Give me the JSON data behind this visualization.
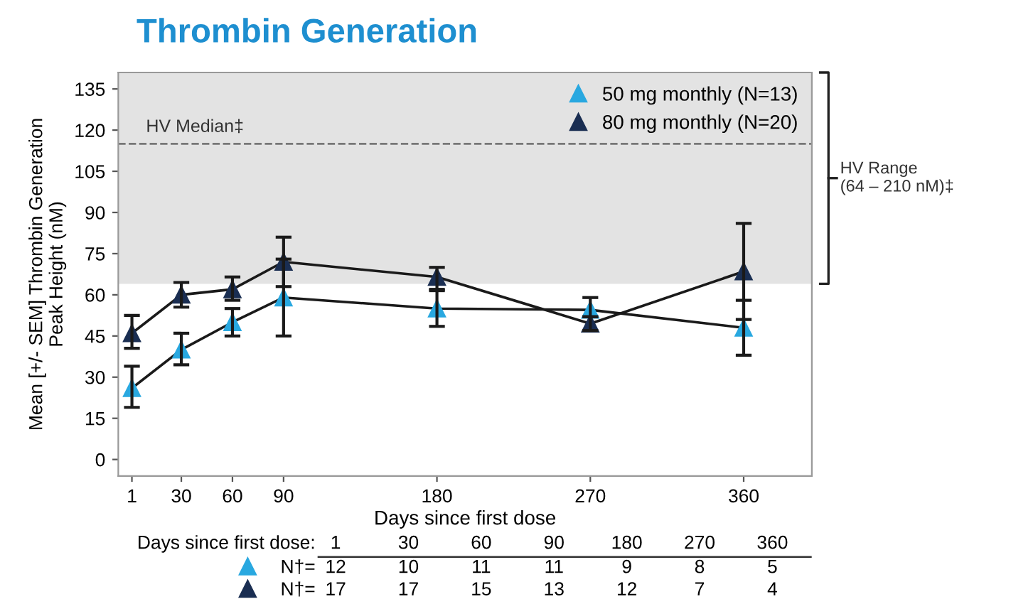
{
  "chart_data": {
    "type": "line",
    "title": "Thrombin Generation",
    "xlabel": "Days since first dose",
    "ylabel": "Mean [+/- SEM] Thrombin Generation\nPeak Height (nM)",
    "x": [
      1,
      30,
      60,
      90,
      180,
      270,
      360
    ],
    "series": [
      {
        "name": "50 mg monthly (N=13)",
        "color": "#29a8e0",
        "values": [
          26,
          40,
          50,
          59,
          55,
          54.5,
          48
        ],
        "errors": [
          [
            19,
            34
          ],
          [
            34.5,
            46
          ],
          [
            45,
            55
          ],
          [
            45,
            73
          ],
          [
            48.5,
            61.5
          ],
          [
            52,
            59
          ],
          [
            38,
            58
          ]
        ]
      },
      {
        "name": "80 mg monthly (N=20)",
        "color": "#1a2e52",
        "values": [
          46,
          60,
          62,
          72,
          66.5,
          49.5,
          68.5
        ],
        "errors": [
          [
            40.5,
            52.5
          ],
          [
            55.5,
            64.5
          ],
          [
            58,
            66.5
          ],
          [
            63,
            81
          ],
          [
            62,
            70
          ],
          [
            47,
            52
          ],
          [
            51,
            86
          ]
        ]
      }
    ],
    "xlim": [
      -7,
      400
    ],
    "ylim": [
      -6,
      141
    ],
    "xticks": [
      1,
      30,
      60,
      90,
      180,
      270,
      360
    ],
    "yticks": [
      0,
      15,
      30,
      45,
      60,
      75,
      90,
      105,
      120,
      135
    ],
    "ref_lines": [
      {
        "axis": "y",
        "value": 115,
        "label": "HV Median‡",
        "color": "#777777",
        "line_style": "dashed"
      }
    ],
    "bands": [
      {
        "axis": "y",
        "from": 64,
        "to": 141,
        "label": "HV Range\n(64 – 210 nM)‡",
        "color": "#e3e3e3"
      }
    ],
    "marker": "triangle",
    "line_style": "solid",
    "legend": "top right",
    "grid": false,
    "annotations": [
      "Days since first dose:",
      "1",
      "30",
      "60",
      "90",
      "180",
      "270",
      "360",
      "N†=",
      "12",
      "10",
      "11",
      "11",
      "9",
      "8",
      "5",
      "N†=",
      "17",
      "17",
      "15",
      "13",
      "12",
      "7",
      "4"
    ]
  }
}
